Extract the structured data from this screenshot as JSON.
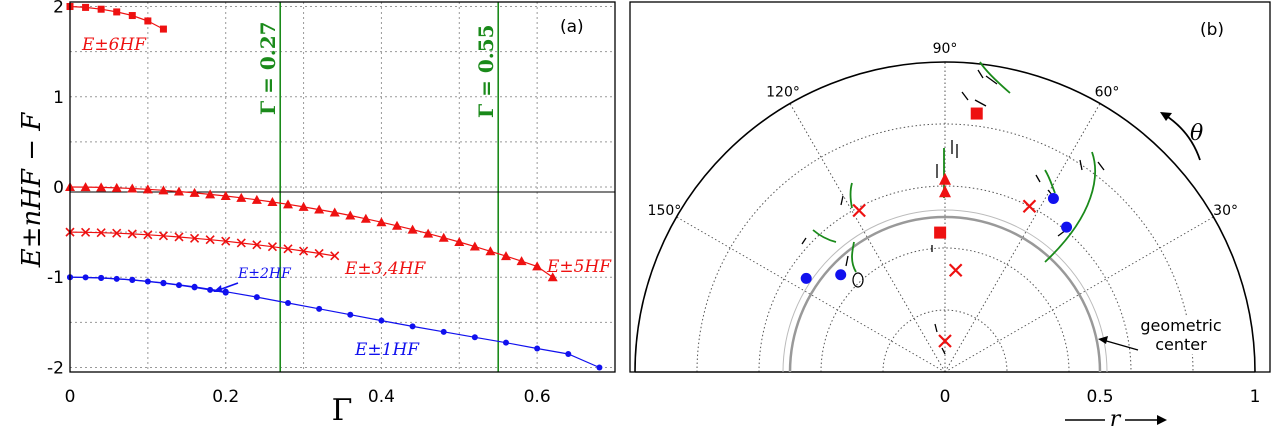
{
  "chart_data": [
    {
      "type": "line",
      "panel_label": "(a)",
      "xlabel": "Γ",
      "ylabel": "E±nHF − F",
      "xlim": [
        0,
        0.7
      ],
      "ylim": [
        -2.05,
        2.05
      ],
      "x_ticks": [
        "0",
        "0.2",
        "0.4",
        "0.6"
      ],
      "y_ticks": [
        "2",
        "1",
        "0",
        "-1",
        "-2"
      ],
      "grid": true,
      "vlines": [
        {
          "x": 0.27,
          "label": "Γ = 0.27",
          "color": "#1a8a1a"
        },
        {
          "x": 0.55,
          "label": "Γ = 0.55",
          "color": "#1a8a1a"
        }
      ],
      "series": [
        {
          "name": "E±6HF",
          "color": "#ee1111",
          "marker": "square",
          "x": [
            0,
            0.02,
            0.04,
            0.06,
            0.08,
            0.1,
            0.12
          ],
          "y": [
            2.0,
            1.99,
            1.97,
            1.94,
            1.9,
            1.84,
            1.75
          ]
        },
        {
          "name": "E±5HF",
          "color": "#ee1111",
          "marker": "triangle",
          "x": [
            0,
            0.02,
            0.04,
            0.06,
            0.08,
            0.1,
            0.12,
            0.14,
            0.16,
            0.18,
            0.2,
            0.22,
            0.24,
            0.26,
            0.28,
            0.3,
            0.32,
            0.34,
            0.36,
            0.38,
            0.4,
            0.42,
            0.44,
            0.46,
            0.48,
            0.5,
            0.52,
            0.54,
            0.56,
            0.58,
            0.6,
            0.62
          ],
          "y": [
            0.0,
            -0.001,
            -0.004,
            -0.01,
            -0.017,
            -0.026,
            -0.037,
            -0.05,
            -0.065,
            -0.082,
            -0.1,
            -0.12,
            -0.142,
            -0.166,
            -0.192,
            -0.22,
            -0.25,
            -0.282,
            -0.316,
            -0.352,
            -0.39,
            -0.43,
            -0.472,
            -0.516,
            -0.562,
            -0.61,
            -0.66,
            -0.712,
            -0.766,
            -0.822,
            -0.88,
            -1.0
          ]
        },
        {
          "name": "E±3,4HF",
          "color": "#ee1111",
          "marker": "x",
          "x": [
            0,
            0.02,
            0.04,
            0.06,
            0.08,
            0.1,
            0.12,
            0.14,
            0.16,
            0.18,
            0.2,
            0.22,
            0.24,
            0.26,
            0.28,
            0.3,
            0.32,
            0.34
          ],
          "y": [
            -0.5,
            -0.502,
            -0.506,
            -0.512,
            -0.52,
            -0.53,
            -0.541,
            -0.554,
            -0.568,
            -0.584,
            -0.601,
            -0.62,
            -0.64,
            -0.662,
            -0.685,
            -0.71,
            -0.736,
            -0.763
          ]
        },
        {
          "name": "E±2HF",
          "color": "#1111ee",
          "marker": "dot",
          "x": [
            0,
            0.02,
            0.04,
            0.06,
            0.08,
            0.1,
            0.12,
            0.14,
            0.16,
            0.18,
            0.2
          ],
          "y": [
            -1.0,
            -1.002,
            -1.008,
            -1.018,
            -1.031,
            -1.047,
            -1.066,
            -1.088,
            -1.112,
            -1.14,
            -1.17
          ]
        },
        {
          "name": "E±1HF",
          "color": "#1111ee",
          "marker": "dot",
          "x": [
            0,
            0.04,
            0.08,
            0.12,
            0.16,
            0.2,
            0.24,
            0.28,
            0.32,
            0.36,
            0.4,
            0.44,
            0.48,
            0.52,
            0.56,
            0.6,
            0.64,
            0.68
          ],
          "y": [
            -1.0,
            -1.007,
            -1.028,
            -1.062,
            -1.106,
            -1.16,
            -1.22,
            -1.285,
            -1.35,
            -1.415,
            -1.48,
            -1.545,
            -1.605,
            -1.665,
            -1.725,
            -1.79,
            -1.85,
            -2.0
          ]
        }
      ]
    },
    {
      "type": "scatter",
      "projection": "polar-half",
      "panel_label": "(b)",
      "r_ticks": [
        "0",
        "0.5",
        "1"
      ],
      "angle_ticks": [
        "30°",
        "60°",
        "90°",
        "120°",
        "150°"
      ],
      "r_label": "r",
      "angle_label": "θ",
      "annotation": "geometric center",
      "points": [
        {
          "marker": "x",
          "color": "#ee1111",
          "r": 0.33,
          "theta": 84
        },
        {
          "marker": "square",
          "color": "#ee1111",
          "r": 0.84,
          "theta": 83
        },
        {
          "marker": "triangle",
          "color": "#ee1111",
          "r": 0.62,
          "theta": 90
        },
        {
          "marker": "triangle",
          "color": "#ee1111",
          "r": 0.58,
          "theta": 90
        },
        {
          "marker": "square",
          "color": "#ee1111",
          "r": 0.45,
          "theta": 92
        },
        {
          "marker": "x",
          "color": "#ee1111",
          "r": 0.1,
          "theta": 90
        },
        {
          "marker": "x",
          "color": "#ee1111",
          "r": 0.59,
          "theta": 118
        },
        {
          "marker": "x",
          "color": "#ee1111",
          "r": 0.6,
          "theta": 63
        },
        {
          "marker": "dot",
          "color": "#1111ee",
          "r": 0.66,
          "theta": 58
        },
        {
          "marker": "dot",
          "color": "#1111ee",
          "r": 0.61,
          "theta": 50
        },
        {
          "marker": "dot",
          "color": "#1111ee",
          "r": 0.54,
          "theta": 146
        },
        {
          "marker": "dot",
          "color": "#1111ee",
          "r": 0.46,
          "theta": 137
        }
      ]
    }
  ]
}
